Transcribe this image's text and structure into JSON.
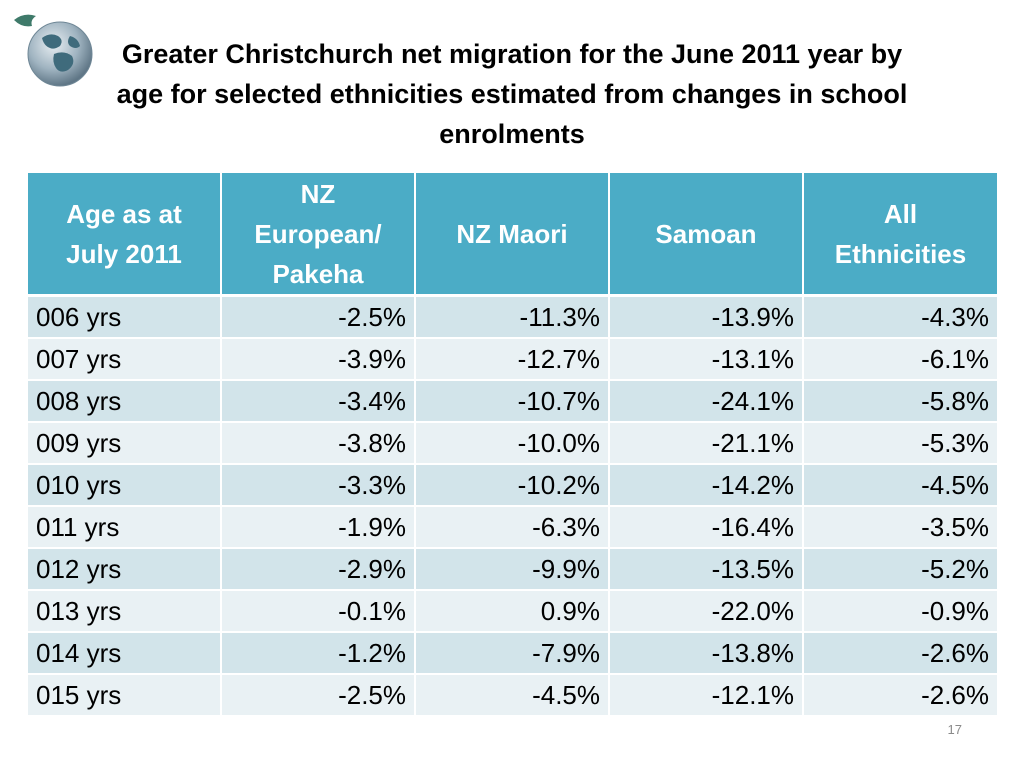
{
  "slide": {
    "title_lines": [
      "Greater Christchurch net migration for the June 2011 year by",
      "age for selected ethnicities estimated from changes in school",
      "enrolments"
    ],
    "page_number": "17"
  },
  "table": {
    "headers": [
      [
        "Age as at",
        "July 2011"
      ],
      [
        "NZ",
        "European/",
        "Pakeha"
      ],
      [
        "NZ Maori"
      ],
      [
        "Samoan"
      ],
      [
        "All",
        "Ethnicities"
      ]
    ],
    "rows": [
      [
        "006 yrs",
        "-2.5%",
        "-11.3%",
        "-13.9%",
        "-4.3%"
      ],
      [
        "007 yrs",
        "-3.9%",
        "-12.7%",
        "-13.1%",
        "-6.1%"
      ],
      [
        "008 yrs",
        "-3.4%",
        "-10.7%",
        "-24.1%",
        "-5.8%"
      ],
      [
        "009 yrs",
        "-3.8%",
        "-10.0%",
        "-21.1%",
        "-5.3%"
      ],
      [
        "010 yrs",
        "-3.3%",
        "-10.2%",
        "-14.2%",
        "-4.5%"
      ],
      [
        "011 yrs",
        "-1.9%",
        "-6.3%",
        "-16.4%",
        "-3.5%"
      ],
      [
        "012 yrs",
        "-2.9%",
        "-9.9%",
        "-13.5%",
        "-5.2%"
      ],
      [
        "013 yrs",
        "-0.1%",
        "0.9%",
        "-22.0%",
        "-0.9%"
      ],
      [
        "014 yrs",
        "-1.2%",
        "-7.9%",
        "-13.8%",
        "-2.6%"
      ],
      [
        "015 yrs",
        "-2.5%",
        "-4.5%",
        "-12.1%",
        "-2.6%"
      ]
    ]
  },
  "colors": {
    "header_background": "#4bacc6",
    "row_band_dark": "#d2e4ea",
    "row_band_light": "#e9f1f4"
  },
  "icons": {
    "logo": "globe-icon"
  }
}
